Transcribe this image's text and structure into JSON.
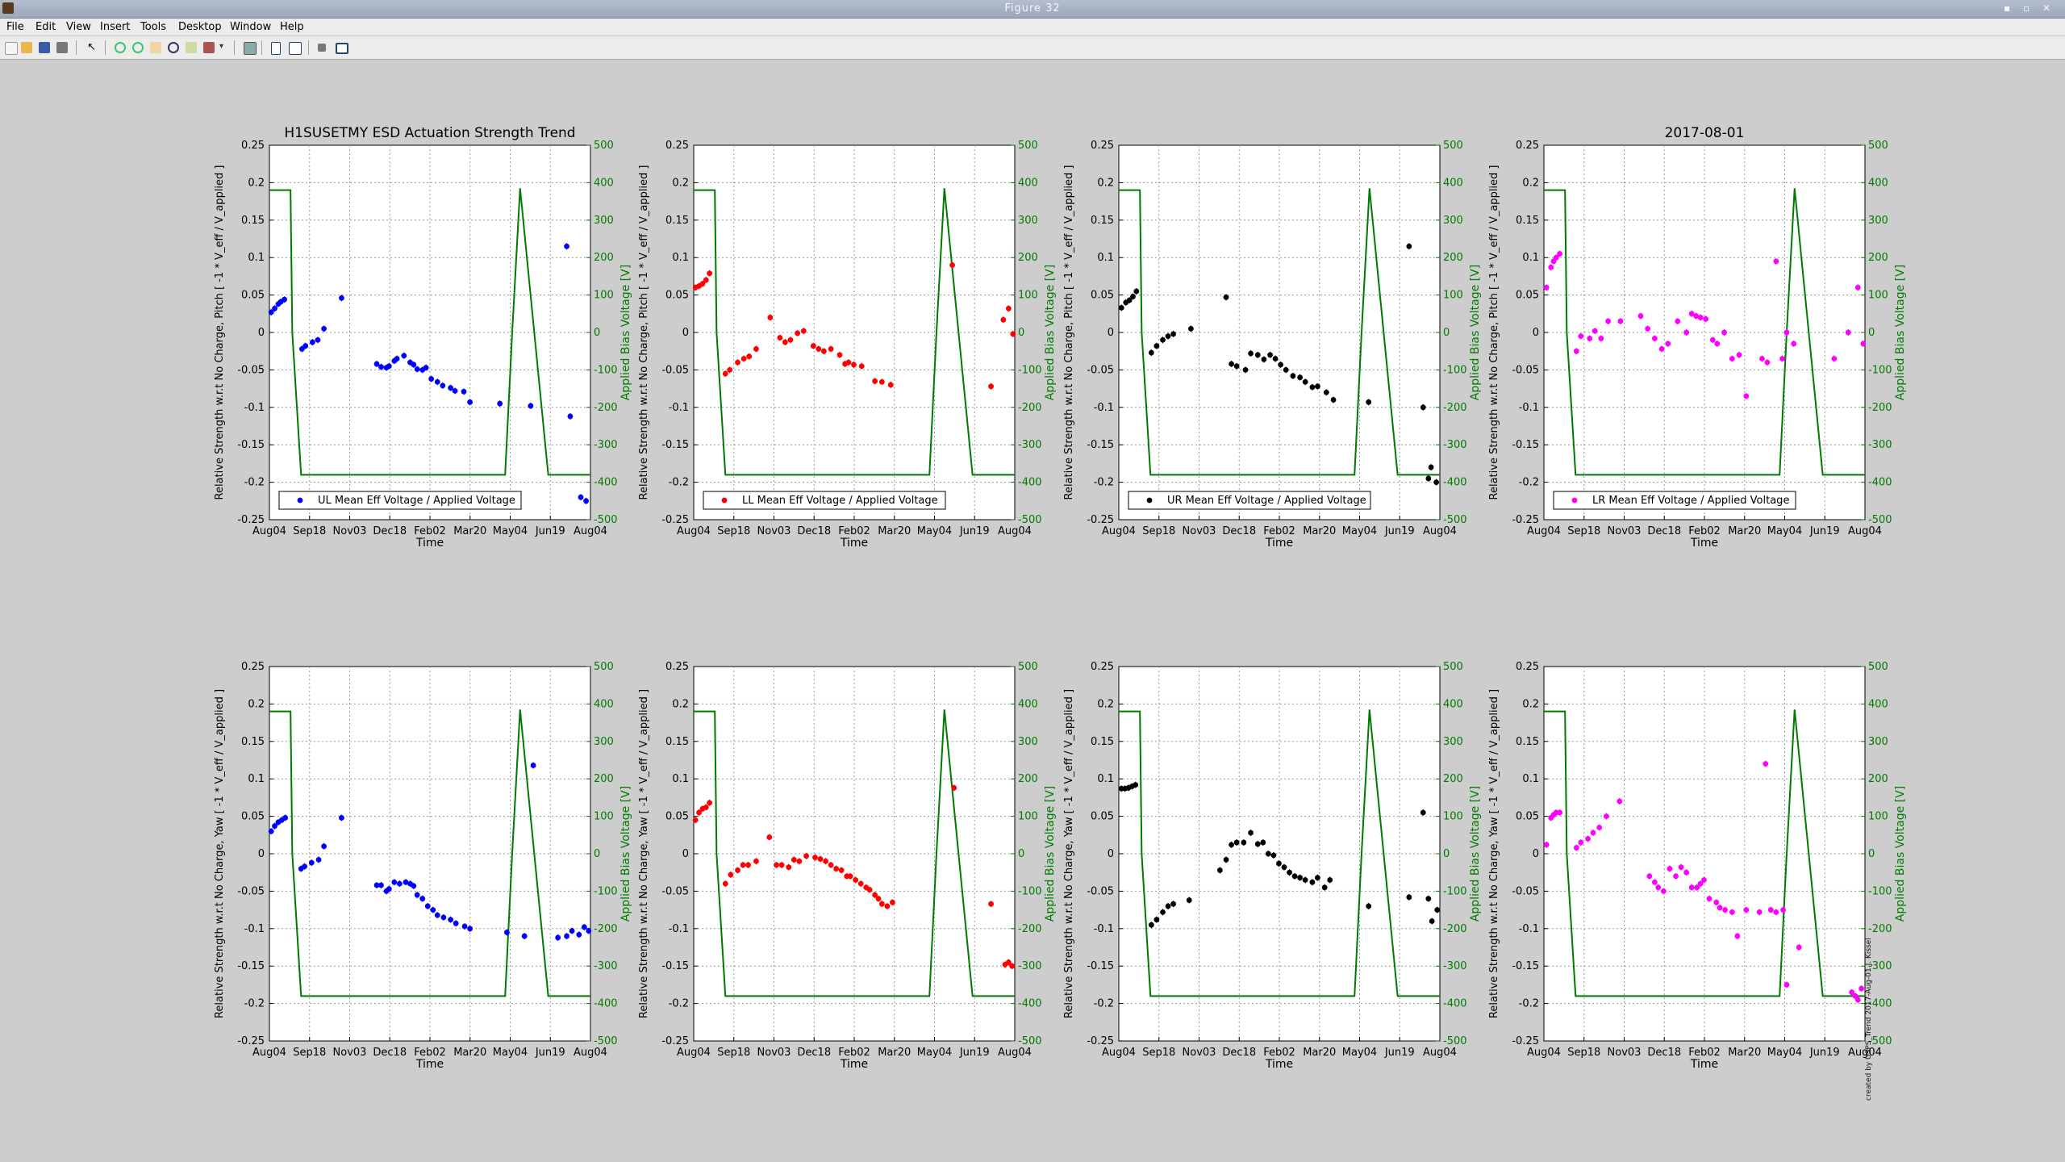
{
  "window": {
    "title": "Figure 32"
  },
  "menu": [
    "File",
    "Edit",
    "View",
    "Insert",
    "Tools",
    "Desktop",
    "Window",
    "Help"
  ],
  "toolbar": {
    "icons": [
      "new-figure-icon",
      "open-file-icon",
      "save-icon",
      "print-icon",
      "edit-plot-icon",
      "zoom-in-icon",
      "zoom-out-icon",
      "pan-icon",
      "rotate-icon",
      "data-cursor-icon",
      "brush-icon",
      "link-icon",
      "colorbar-icon",
      "legend-icon",
      "hide-tools-icon",
      "show-tools-icon"
    ]
  },
  "watermark": "created by USPS_Trend 2017-Aug-01 J. Kissel",
  "colors": {
    "voltage": "#007a00",
    "UL": "#0000ff",
    "LL": "#ff0000",
    "UR": "#000000",
    "LR": "#ff00ff"
  },
  "chart_data": [
    {
      "type": "scatter",
      "panel": "UL pitch",
      "title": "H1SUSETMY ESD Actuation Strength Trend",
      "xlabel": "Time",
      "ylabel": "Relative Strength w.r.t No Charge, Pitch [ -1 * V_eff / V_applied ]",
      "y2label": "Applied Bias Voltage [V]",
      "xticks": [
        "Aug04",
        "Sep18",
        "Nov03",
        "Dec18",
        "Feb02",
        "Mar20",
        "May04",
        "Jun19",
        "Aug04"
      ],
      "xlim": [
        0,
        365
      ],
      "ylim": [
        -0.25,
        0.25
      ],
      "y2lim": [
        -500,
        500
      ],
      "grid": true,
      "legend": "UL Mean Eff Voltage / Applied Voltage",
      "legend_position": "bottom-left",
      "color": "#0000ff",
      "x": [
        2,
        6,
        10,
        13,
        17,
        37,
        41,
        49,
        55,
        62,
        82,
        122,
        127,
        133,
        136,
        142,
        145,
        153,
        160,
        164,
        168,
        174,
        178,
        184,
        191,
        197,
        206,
        211,
        221,
        228,
        262,
        297,
        338,
        342,
        354,
        360
      ],
      "y": [
        0.027,
        0.032,
        0.038,
        0.041,
        0.044,
        -0.022,
        -0.018,
        -0.013,
        -0.01,
        0.005,
        0.046,
        -0.042,
        -0.046,
        -0.047,
        -0.045,
        -0.038,
        -0.035,
        -0.031,
        -0.04,
        -0.043,
        -0.049,
        -0.05,
        -0.047,
        -0.062,
        -0.066,
        -0.071,
        -0.074,
        -0.078,
        -0.079,
        -0.093,
        -0.095,
        -0.098,
        0.115,
        -0.112,
        -0.22,
        -0.225
      ]
    },
    {
      "type": "scatter",
      "panel": "LL pitch",
      "title": "",
      "xlabel": "Time",
      "ylabel": "Relative Strength w.r.t No Charge, Pitch [ -1 * V_eff / V_applied ]",
      "y2label": "Applied Bias Voltage [V]",
      "xticks": [
        "Aug04",
        "Sep18",
        "Nov03",
        "Dec18",
        "Feb02",
        "Mar20",
        "May04",
        "Jun19",
        "Aug04"
      ],
      "xlim": [
        0,
        365
      ],
      "ylim": [
        -0.25,
        0.25
      ],
      "y2lim": [
        -500,
        500
      ],
      "grid": true,
      "legend": "LL Mean Eff Voltage / Applied Voltage",
      "legend_position": "bottom-left",
      "color": "#ff0000",
      "x": [
        2,
        6,
        10,
        14,
        18,
        36,
        41,
        50,
        57,
        63,
        71,
        87,
        98,
        104,
        110,
        118,
        125,
        136,
        142,
        148,
        156,
        166,
        172,
        176,
        182,
        191,
        206,
        214,
        224,
        294,
        338,
        352,
        358,
        363
      ],
      "y": [
        0.06,
        0.062,
        0.065,
        0.07,
        0.079,
        -0.055,
        -0.05,
        -0.04,
        -0.035,
        -0.032,
        -0.022,
        0.02,
        -0.007,
        -0.013,
        -0.01,
        -0.001,
        0.002,
        -0.018,
        -0.022,
        -0.025,
        -0.022,
        -0.03,
        -0.042,
        -0.04,
        -0.043,
        -0.045,
        -0.065,
        -0.066,
        -0.07,
        0.09,
        -0.072,
        0.017,
        0.032,
        -0.002
      ]
    },
    {
      "type": "scatter",
      "panel": "UR pitch",
      "title": "",
      "xlabel": "Time",
      "ylabel": "Relative Strength w.r.t No Charge, Pitch [ -1 * V_eff / V_applied ]",
      "y2label": "Applied Bias Voltage [V]",
      "xticks": [
        "Aug04",
        "Sep18",
        "Nov03",
        "Dec18",
        "Feb02",
        "Mar20",
        "May04",
        "Jun19",
        "Aug04"
      ],
      "xlim": [
        0,
        365
      ],
      "ylim": [
        -0.25,
        0.25
      ],
      "y2lim": [
        -500,
        500
      ],
      "grid": true,
      "legend": "UR Mean Eff Voltage / Applied Voltage",
      "legend_position": "bottom-left",
      "color": "#000000",
      "x": [
        3,
        8,
        12,
        16,
        20,
        37,
        43,
        50,
        56,
        62,
        82,
        122,
        128,
        134,
        144,
        150,
        158,
        165,
        172,
        178,
        184,
        190,
        198,
        206,
        212,
        220,
        226,
        236,
        244,
        284,
        330,
        346,
        352,
        355,
        361
      ],
      "y": [
        0.033,
        0.04,
        0.043,
        0.048,
        0.055,
        -0.027,
        -0.018,
        -0.01,
        -0.005,
        -0.002,
        0.005,
        0.047,
        -0.042,
        -0.045,
        -0.05,
        -0.028,
        -0.03,
        -0.036,
        -0.03,
        -0.035,
        -0.043,
        -0.05,
        -0.058,
        -0.06,
        -0.066,
        -0.073,
        -0.072,
        -0.08,
        -0.09,
        -0.093,
        0.115,
        -0.1,
        -0.195,
        -0.18,
        -0.2
      ]
    },
    {
      "type": "scatter",
      "panel": "LR pitch",
      "title": "2017-08-01",
      "xlabel": "Time",
      "ylabel": "Relative Strength w.r.t No Charge, Pitch [ -1 * V_eff / V_applied ]",
      "y2label": "Applied Bias Voltage [V]",
      "xticks": [
        "Aug04",
        "Sep18",
        "Nov03",
        "Dec18",
        "Feb02",
        "Mar20",
        "May04",
        "Jun19",
        "Aug04"
      ],
      "xlim": [
        0,
        365
      ],
      "ylim": [
        -0.25,
        0.25
      ],
      "y2lim": [
        -500,
        500
      ],
      "grid": true,
      "legend": "LR Mean Eff Voltage / Applied Voltage",
      "legend_position": "bottom-left",
      "color": "#ff00ff",
      "x": [
        3,
        8,
        11,
        14,
        18,
        37,
        42,
        52,
        58,
        65,
        73,
        87,
        110,
        118,
        126,
        134,
        141,
        152,
        162,
        168,
        173,
        178,
        184,
        192,
        197,
        205,
        214,
        222,
        230,
        248,
        254,
        264,
        271,
        276,
        284,
        330,
        346,
        357,
        363
      ],
      "y": [
        0.06,
        0.087,
        0.095,
        0.1,
        0.105,
        -0.025,
        -0.005,
        -0.008,
        0.002,
        -0.008,
        0.015,
        0.015,
        0.022,
        0.005,
        -0.008,
        -0.022,
        -0.015,
        0.015,
        0.0,
        0.025,
        0.022,
        0.02,
        0.018,
        -0.01,
        -0.015,
        0.0,
        -0.035,
        -0.03,
        -0.085,
        -0.035,
        -0.04,
        0.095,
        -0.035,
        0.0,
        -0.015,
        -0.035,
        0.0,
        0.06,
        -0.015
      ]
    },
    {
      "type": "scatter",
      "panel": "UL yaw",
      "title": "",
      "xlabel": "Time",
      "ylabel": "Relative Strength w.r.t No Charge, Yaw [ -1 * V_eff / V_applied ]",
      "y2label": "Applied Bias Voltage [V]",
      "xticks": [
        "Aug04",
        "Sep18",
        "Nov03",
        "Dec18",
        "Feb02",
        "Mar20",
        "May04",
        "Jun19",
        "Aug04"
      ],
      "xlim": [
        0,
        365
      ],
      "ylim": [
        -0.25,
        0.25
      ],
      "y2lim": [
        -500,
        500
      ],
      "grid": true,
      "legend": "",
      "color": "#0000ff",
      "x": [
        2,
        6,
        10,
        14,
        18,
        36,
        40,
        48,
        56,
        62,
        82,
        122,
        127,
        133,
        136,
        142,
        148,
        155,
        160,
        164,
        168,
        174,
        180,
        186,
        191,
        198,
        206,
        212,
        222,
        228,
        270,
        290,
        300,
        328,
        338,
        344,
        352,
        358,
        363
      ],
      "y": [
        0.03,
        0.037,
        0.042,
        0.045,
        0.048,
        -0.02,
        -0.017,
        -0.012,
        -0.008,
        0.01,
        0.048,
        -0.042,
        -0.042,
        -0.05,
        -0.047,
        -0.038,
        -0.04,
        -0.038,
        -0.04,
        -0.043,
        -0.055,
        -0.06,
        -0.07,
        -0.075,
        -0.082,
        -0.085,
        -0.088,
        -0.093,
        -0.097,
        -0.1,
        -0.105,
        -0.11,
        0.118,
        -0.112,
        -0.11,
        -0.103,
        -0.108,
        -0.098,
        -0.103
      ]
    },
    {
      "type": "scatter",
      "panel": "LL yaw",
      "title": "",
      "xlabel": "Time",
      "ylabel": "Relative Strength w.r.t No Charge, Yaw [ -1 * V_eff / V_applied ]",
      "y2label": "Applied Bias Voltage [V]",
      "xticks": [
        "Aug04",
        "Sep18",
        "Nov03",
        "Dec18",
        "Feb02",
        "Mar20",
        "May04",
        "Jun19",
        "Aug04"
      ],
      "xlim": [
        0,
        365
      ],
      "ylim": [
        -0.25,
        0.25
      ],
      "y2lim": [
        -500,
        500
      ],
      "grid": true,
      "legend": "",
      "color": "#ff0000",
      "x": [
        2,
        6,
        10,
        14,
        18,
        36,
        42,
        50,
        56,
        62,
        71,
        86,
        94,
        100,
        108,
        114,
        120,
        128,
        138,
        144,
        150,
        156,
        162,
        168,
        174,
        178,
        184,
        190,
        196,
        200,
        206,
        210,
        214,
        220,
        226,
        296,
        338,
        354,
        358,
        362
      ],
      "y": [
        0.045,
        0.055,
        0.06,
        0.062,
        0.068,
        -0.04,
        -0.028,
        -0.022,
        -0.015,
        -0.015,
        -0.01,
        0.022,
        -0.015,
        -0.015,
        -0.018,
        -0.008,
        -0.01,
        -0.003,
        -0.005,
        -0.007,
        -0.01,
        -0.015,
        -0.02,
        -0.022,
        -0.03,
        -0.03,
        -0.035,
        -0.04,
        -0.045,
        -0.048,
        -0.055,
        -0.06,
        -0.067,
        -0.07,
        -0.065,
        0.088,
        -0.067,
        -0.148,
        -0.145,
        -0.15
      ]
    },
    {
      "type": "scatter",
      "panel": "UR yaw",
      "title": "",
      "xlabel": "Time",
      "ylabel": "Relative Strength w.r.t No Charge, Yaw [ -1 * V_eff / V_applied ]",
      "y2label": "Applied Bias Voltage [V]",
      "xticks": [
        "Aug04",
        "Sep18",
        "Nov03",
        "Dec18",
        "Feb02",
        "Mar20",
        "May04",
        "Jun19",
        "Aug04"
      ],
      "xlim": [
        0,
        365
      ],
      "ylim": [
        -0.25,
        0.25
      ],
      "y2lim": [
        -500,
        500
      ],
      "grid": true,
      "legend": "",
      "color": "#000000",
      "x": [
        3,
        7,
        11,
        15,
        19,
        37,
        43,
        50,
        56,
        62,
        80,
        115,
        122,
        128,
        134,
        142,
        150,
        158,
        164,
        170,
        176,
        182,
        188,
        194,
        200,
        206,
        212,
        220,
        226,
        234,
        240,
        284,
        330,
        346,
        352,
        356,
        362
      ],
      "y": [
        0.087,
        0.087,
        0.088,
        0.09,
        0.092,
        -0.095,
        -0.088,
        -0.078,
        -0.07,
        -0.067,
        -0.062,
        -0.022,
        -0.008,
        0.012,
        0.015,
        0.015,
        0.028,
        0.013,
        0.015,
        0.0,
        -0.002,
        -0.013,
        -0.018,
        -0.025,
        -0.03,
        -0.032,
        -0.035,
        -0.038,
        -0.032,
        -0.045,
        -0.035,
        -0.07,
        -0.058,
        0.055,
        -0.06,
        -0.09,
        -0.075
      ]
    },
    {
      "type": "scatter",
      "panel": "LR yaw",
      "title": "",
      "xlabel": "Time",
      "ylabel": "Relative Strength w.r.t No Charge, Yaw [ -1 * V_eff / V_applied ]",
      "y2label": "Applied Bias Voltage [V]",
      "xticks": [
        "Aug04",
        "Sep18",
        "Nov03",
        "Dec18",
        "Feb02",
        "Mar20",
        "May04",
        "Jun19",
        "Aug04"
      ],
      "xlim": [
        0,
        365
      ],
      "ylim": [
        -0.25,
        0.25
      ],
      "y2lim": [
        -500,
        500
      ],
      "grid": true,
      "legend": "",
      "color": "#ff00ff",
      "x": [
        3,
        8,
        11,
        14,
        18,
        37,
        42,
        50,
        56,
        63,
        71,
        86,
        120,
        126,
        130,
        136,
        143,
        150,
        156,
        162,
        168,
        174,
        178,
        182,
        188,
        196,
        200,
        206,
        214,
        220,
        230,
        245,
        252,
        258,
        264,
        272,
        276,
        290,
        350,
        354,
        357,
        361
      ],
      "y": [
        0.012,
        0.048,
        0.052,
        0.055,
        0.055,
        0.008,
        0.015,
        0.02,
        0.028,
        0.035,
        0.05,
        0.07,
        -0.03,
        -0.038,
        -0.045,
        -0.05,
        -0.02,
        -0.03,
        -0.018,
        -0.025,
        -0.045,
        -0.045,
        -0.04,
        -0.035,
        -0.06,
        -0.065,
        -0.072,
        -0.075,
        -0.078,
        -0.11,
        -0.075,
        -0.078,
        0.12,
        -0.075,
        -0.078,
        -0.075,
        -0.175,
        -0.125,
        -0.185,
        -0.19,
        -0.195,
        -0.18
      ]
    }
  ],
  "voltage_trace": {
    "note": "Applied Bias Voltage (right axis, V), shared by all panels",
    "x": [
      0,
      24,
      26,
      36,
      38,
      268,
      276,
      285,
      317,
      323,
      365
    ],
    "y": [
      380,
      380,
      0,
      -380,
      -380,
      -380,
      0,
      385,
      -380,
      -380,
      -380
    ]
  }
}
